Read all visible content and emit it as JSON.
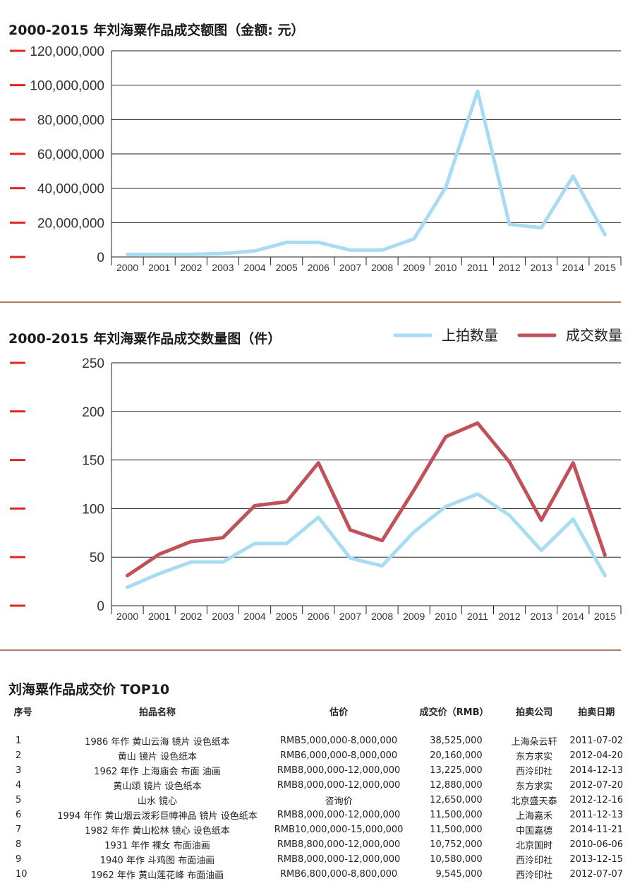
{
  "chart_data": [
    {
      "type": "line",
      "title": "2000-2015 年刘海粟作品成交额图（金额: 元）",
      "categories": [
        "2000",
        "2001",
        "2002",
        "2003",
        "2004",
        "2005",
        "2006",
        "2007",
        "2008",
        "2009",
        "2010",
        "2011",
        "2012",
        "2013",
        "2014",
        "2015"
      ],
      "series": [
        {
          "name": "",
          "color": "#a8dcf2",
          "values": [
            1500000,
            1500000,
            1500000,
            2000000,
            3500000,
            8500000,
            8500000,
            4000000,
            4000000,
            10500000,
            40500000,
            96500000,
            19000000,
            17000000,
            47000000,
            13000000
          ]
        }
      ],
      "ylim": [
        0,
        120000000
      ],
      "yticks": [
        "0",
        "20,000,000",
        "40,000,000",
        "60,000,000",
        "80,000,000",
        "100,000,000",
        "120,000,000"
      ],
      "grid": true,
      "accent_color": "#e0271f"
    },
    {
      "type": "line",
      "title": "2000-2015 年刘海粟作品成交数量图（件）",
      "categories": [
        "2000",
        "2001",
        "2002",
        "2003",
        "2004",
        "2005",
        "2006",
        "2007",
        "2008",
        "2009",
        "2010",
        "2011",
        "2012",
        "2013",
        "2014",
        "2015"
      ],
      "series": [
        {
          "name": "上拍数量",
          "color": "#a8dcf2",
          "values": [
            19,
            33,
            45,
            45,
            64,
            64,
            91,
            49,
            41,
            76,
            102,
            115,
            93,
            57,
            89,
            31
          ]
        },
        {
          "name": "成交数量",
          "color": "#c0505a",
          "values": [
            31,
            53,
            66,
            70,
            103,
            107,
            147,
            78,
            67,
            119,
            174,
            188,
            148,
            88,
            147,
            52
          ]
        }
      ],
      "ylim": [
        0,
        250
      ],
      "yticks": [
        "0",
        "50",
        "100",
        "150",
        "200",
        "250"
      ],
      "grid": true,
      "legend_position": "top-right",
      "accent_color": "#e0271f"
    }
  ],
  "table": {
    "title": "刘海粟作品成交价 TOP10",
    "headers": [
      "序号",
      "拍品名称",
      "估价",
      "成交价（RMB）",
      "拍卖公司",
      "拍卖日期"
    ],
    "rows": [
      [
        "1",
        "1986 年作 黄山云海 镜片 设色纸本",
        "RMB5,000,000-8,000,000",
        "38,525,000",
        "上海朵云轩",
        "2011-07-02"
      ],
      [
        "2",
        "黄山 镜片 设色纸本",
        "RMB6,000,000-8,000,000",
        "20,160,000",
        "东方求实",
        "2012-04-20"
      ],
      [
        "3",
        "1962 年作 上海庙会 布面 油画",
        "RMB8,000,000-12,000,000",
        "13,225,000",
        "西泠印社",
        "2014-12-13"
      ],
      [
        "4",
        "黄山颂 镜片 设色纸本",
        "RMB8,000,000-12,000,000",
        "12,880,000",
        "东方求实",
        "2012-07-20"
      ],
      [
        "5",
        "山水 镜心",
        "咨询价",
        "12,650,000",
        "北京盛天泰",
        "2012-12-16"
      ],
      [
        "6",
        "1994 年作 黄山烟云泼彩巨幛神品 镜片 设色纸本",
        "RMB8,000,000-12,000,000",
        "11,500,000",
        "上海嘉禾",
        "2011-12-13"
      ],
      [
        "7",
        "1982 年作 黄山松林 镜心 设色纸本",
        "RMB10,000,000-15,000,000",
        "11,500,000",
        "中国嘉德",
        "2014-11-21"
      ],
      [
        "8",
        "1931 年作 裸女 布面油画",
        "RMB8,800,000-12,000,000",
        "10,752,000",
        "北京国时",
        "2010-06-06"
      ],
      [
        "9",
        "1940 年作 斗鸡图 布面油画",
        "RMB8,000,000-12,000,000",
        "10,580,000",
        "西泠印社",
        "2013-12-15"
      ],
      [
        "10",
        "1962 年作 黄山莲花峰 布面油画",
        "RMB6,800,000-8,800,000",
        "9,545,000",
        "西泠印社",
        "2012-07-07"
      ]
    ]
  }
}
